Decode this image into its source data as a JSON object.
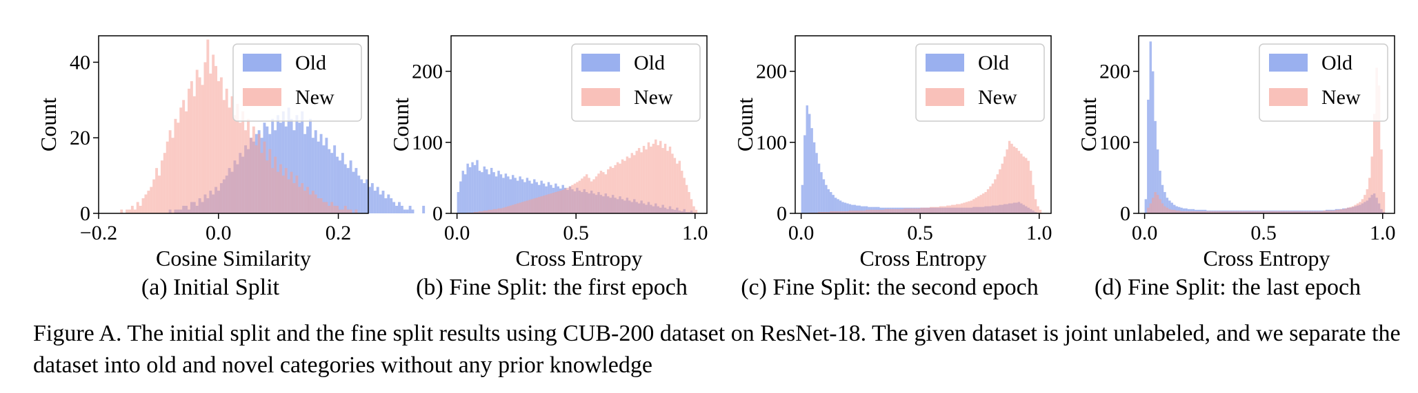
{
  "figure": {
    "caption": "Figure A. The initial split and the fine split results using CUB-200 dataset on ResNet-18.  The given dataset is joint unlabeled, and we separate the dataset into old and novel categories without any prior knowledge"
  },
  "colors": {
    "old": "#6f8ee8",
    "new": "#f6a095",
    "old_alpha": 0.6,
    "new_alpha": 0.55
  },
  "chart_data": [
    {
      "type": "bar",
      "subtitle": "(a) Initial Split",
      "xlabel": "Cosine Similarity",
      "ylabel": "Count",
      "xlim": [
        -0.2,
        0.25
      ],
      "ylim": [
        0,
        47
      ],
      "xticks": [
        -0.2,
        0.0,
        0.2
      ],
      "xtick_labels": [
        "−0.2",
        "0.0",
        "0.2"
      ],
      "yticks": [
        0,
        20,
        40
      ],
      "ytick_labels": [
        "0",
        "20",
        "40"
      ],
      "grid": false,
      "legend_position": "top-right",
      "bin_start": -0.2,
      "bin_width": 0.0045,
      "series": [
        {
          "name": "Old",
          "values": [
            0,
            0,
            0,
            0,
            0,
            0,
            0,
            0,
            0,
            0,
            0,
            0,
            0,
            0,
            0,
            0,
            0,
            0,
            0,
            0,
            0,
            0,
            0,
            0,
            0,
            0,
            1,
            0,
            1,
            1,
            1,
            2,
            2,
            1,
            3,
            3,
            2,
            4,
            3,
            5,
            4,
            6,
            5,
            7,
            6,
            8,
            9,
            10,
            12,
            11,
            14,
            13,
            16,
            15,
            18,
            17,
            20,
            19,
            21,
            22,
            20,
            24,
            23,
            21,
            25,
            22,
            26,
            24,
            27,
            23,
            28,
            25,
            22,
            26,
            24,
            27,
            21,
            23,
            25,
            20,
            22,
            19,
            21,
            18,
            20,
            17,
            16,
            18,
            15,
            14,
            16,
            13,
            12,
            14,
            11,
            12,
            10,
            9,
            8,
            9,
            7,
            8,
            6,
            7,
            5,
            6,
            4,
            5,
            4,
            3,
            2,
            3,
            2,
            1,
            1,
            2,
            1,
            0,
            0,
            0,
            2
          ]
        },
        {
          "name": "New",
          "values": [
            0,
            0,
            0,
            0,
            0,
            0,
            0,
            0,
            1,
            0,
            1,
            1,
            2,
            1,
            3,
            2,
            4,
            5,
            6,
            7,
            9,
            12,
            10,
            14,
            16,
            19,
            22,
            20,
            25,
            24,
            28,
            30,
            27,
            33,
            35,
            31,
            38,
            36,
            34,
            40,
            46,
            37,
            42,
            39,
            35,
            36,
            30,
            33,
            28,
            31,
            26,
            29,
            24,
            27,
            22,
            25,
            20,
            23,
            18,
            21,
            16,
            19,
            14,
            17,
            12,
            15,
            11,
            13,
            10,
            12,
            9,
            11,
            8,
            10,
            7,
            8,
            6,
            7,
            5,
            6,
            5,
            4,
            4,
            3,
            3,
            2,
            3,
            2,
            2,
            1,
            1,
            2,
            1,
            1,
            0,
            1,
            0,
            0,
            0,
            0,
            0,
            0,
            0,
            0,
            0,
            0,
            0,
            0,
            0,
            0,
            0,
            0,
            0,
            0,
            0,
            0,
            0,
            0,
            0,
            0,
            0
          ]
        }
      ]
    },
    {
      "type": "bar",
      "subtitle": "(b) Fine Split: the first epoch",
      "xlabel": "Cross Entropy",
      "ylabel": "Count",
      "xlim": [
        -0.025,
        1.05
      ],
      "ylim": [
        0,
        250
      ],
      "xticks": [
        0.0,
        0.5,
        1.0
      ],
      "xtick_labels": [
        "0.0",
        "0.5",
        "1.0"
      ],
      "yticks": [
        0,
        100,
        200
      ],
      "ytick_labels": [
        "0",
        "100",
        "200"
      ],
      "grid": false,
      "legend_position": "top-right",
      "bin_start": 0.0,
      "bin_width": 0.01,
      "series": [
        {
          "name": "Old",
          "values": [
            30,
            45,
            60,
            55,
            70,
            65,
            72,
            68,
            75,
            60,
            58,
            66,
            62,
            55,
            64,
            58,
            52,
            60,
            55,
            50,
            56,
            52,
            48,
            54,
            50,
            46,
            52,
            48,
            44,
            50,
            46,
            42,
            48,
            44,
            40,
            46,
            42,
            38,
            44,
            40,
            36,
            42,
            38,
            35,
            40,
            36,
            33,
            38,
            34,
            31,
            36,
            32,
            30,
            34,
            30,
            28,
            32,
            28,
            26,
            30,
            26,
            24,
            28,
            24,
            22,
            26,
            22,
            20,
            24,
            20,
            18,
            22,
            18,
            16,
            20,
            16,
            14,
            18,
            14,
            12,
            16,
            12,
            10,
            14,
            10,
            8,
            12,
            8,
            6,
            10,
            6,
            5,
            8,
            4,
            3,
            6,
            2,
            2,
            4,
            1,
            0
          ]
        },
        {
          "name": "New",
          "values": [
            0,
            0,
            0,
            0,
            1,
            1,
            1,
            2,
            2,
            3,
            3,
            4,
            4,
            5,
            5,
            6,
            6,
            7,
            7,
            8,
            9,
            10,
            11,
            12,
            13,
            14,
            15,
            16,
            17,
            18,
            19,
            20,
            21,
            22,
            23,
            24,
            25,
            26,
            27,
            28,
            29,
            30,
            31,
            32,
            33,
            35,
            36,
            38,
            40,
            42,
            44,
            46,
            49,
            52,
            55,
            50,
            45,
            48,
            52,
            56,
            60,
            58,
            55,
            62,
            66,
            64,
            68,
            72,
            70,
            76,
            74,
            80,
            78,
            85,
            82,
            88,
            92,
            86,
            95,
            90,
            100,
            94,
            98,
            104,
            96,
            102,
            92,
            98,
            88,
            94,
            84,
            78,
            70,
            74,
            60,
            50,
            40,
            30,
            20,
            10,
            5
          ]
        }
      ]
    },
    {
      "type": "bar",
      "subtitle": "(c) Fine Split: the second epoch",
      "xlabel": "Cross Entropy",
      "ylabel": "Count",
      "xlim": [
        -0.025,
        1.05
      ],
      "ylim": [
        0,
        250
      ],
      "xticks": [
        0.0,
        0.5,
        1.0
      ],
      "xtick_labels": [
        "0.0",
        "0.5",
        "1.0"
      ],
      "yticks": [
        0,
        100,
        200
      ],
      "ytick_labels": [
        "0",
        "100",
        "200"
      ],
      "grid": false,
      "legend_position": "top-right",
      "bin_start": 0.0,
      "bin_width": 0.01,
      "series": [
        {
          "name": "Old",
          "values": [
            40,
            110,
            152,
            140,
            120,
            100,
            85,
            70,
            58,
            48,
            40,
            34,
            30,
            26,
            22,
            20,
            18,
            16,
            15,
            14,
            13,
            12,
            12,
            11,
            11,
            10,
            10,
            10,
            9,
            9,
            9,
            9,
            9,
            8,
            8,
            8,
            8,
            8,
            8,
            8,
            8,
            8,
            8,
            8,
            8,
            8,
            8,
            8,
            8,
            8,
            8,
            8,
            8,
            8,
            8,
            8,
            8,
            8,
            8,
            8,
            8,
            8,
            8,
            8,
            8,
            8,
            8,
            8,
            8,
            8,
            8,
            8,
            9,
            9,
            9,
            9,
            9,
            10,
            10,
            10,
            11,
            11,
            11,
            12,
            12,
            13,
            13,
            14,
            14,
            15,
            15,
            16,
            14,
            12,
            10,
            8,
            6,
            4,
            2,
            1,
            0
          ]
        },
        {
          "name": "New",
          "values": [
            0,
            0,
            0,
            1,
            1,
            1,
            1,
            2,
            2,
            2,
            2,
            2,
            3,
            3,
            3,
            3,
            3,
            3,
            3,
            3,
            4,
            4,
            4,
            4,
            4,
            4,
            4,
            5,
            5,
            5,
            5,
            5,
            5,
            5,
            5,
            6,
            6,
            6,
            6,
            6,
            6,
            6,
            6,
            7,
            7,
            7,
            7,
            7,
            7,
            7,
            8,
            8,
            8,
            8,
            9,
            9,
            9,
            9,
            10,
            10,
            10,
            11,
            11,
            12,
            12,
            13,
            13,
            14,
            15,
            16,
            17,
            18,
            20,
            22,
            24,
            26,
            28,
            30,
            34,
            38,
            42,
            48,
            55,
            62,
            70,
            80,
            90,
            102,
            98,
            94,
            92,
            88,
            84,
            80,
            78,
            74,
            60,
            40,
            20,
            10,
            5
          ]
        }
      ]
    },
    {
      "type": "bar",
      "subtitle": "(d) Fine Split: the last epoch",
      "xlabel": "Cross Entropy",
      "ylabel": "Count",
      "xlim": [
        -0.025,
        1.05
      ],
      "ylim": [
        0,
        250
      ],
      "xticks": [
        0.0,
        0.5,
        1.0
      ],
      "xtick_labels": [
        "0.0",
        "0.5",
        "1.0"
      ],
      "yticks": [
        0,
        100,
        200
      ],
      "ytick_labels": [
        "0",
        "100",
        "200"
      ],
      "grid": false,
      "legend_position": "top-right",
      "bin_start": 0.0,
      "bin_width": 0.01,
      "series": [
        {
          "name": "Old",
          "values": [
            20,
            160,
            242,
            200,
            130,
            90,
            60,
            40,
            30,
            22,
            18,
            15,
            12,
            10,
            9,
            8,
            7,
            7,
            6,
            6,
            6,
            5,
            5,
            5,
            5,
            5,
            4,
            4,
            4,
            4,
            4,
            4,
            4,
            4,
            4,
            4,
            4,
            4,
            4,
            4,
            4,
            4,
            4,
            4,
            4,
            4,
            4,
            4,
            4,
            4,
            4,
            4,
            4,
            4,
            4,
            4,
            4,
            4,
            4,
            4,
            4,
            4,
            4,
            4,
            4,
            4,
            4,
            4,
            4,
            4,
            4,
            4,
            4,
            4,
            4,
            4,
            5,
            5,
            5,
            5,
            6,
            6,
            6,
            7,
            7,
            8,
            8,
            9,
            10,
            11,
            12,
            14,
            16,
            18,
            22,
            26,
            28,
            22,
            14,
            6,
            2
          ]
        },
        {
          "name": "New",
          "values": [
            0,
            8,
            14,
            22,
            30,
            26,
            20,
            14,
            10,
            8,
            6,
            5,
            5,
            4,
            4,
            3,
            3,
            3,
            3,
            3,
            3,
            3,
            3,
            3,
            3,
            3,
            3,
            3,
            3,
            3,
            3,
            3,
            3,
            3,
            3,
            3,
            3,
            3,
            3,
            3,
            3,
            3,
            3,
            3,
            3,
            3,
            3,
            3,
            3,
            3,
            3,
            3,
            3,
            3,
            3,
            3,
            3,
            3,
            3,
            3,
            3,
            3,
            3,
            3,
            3,
            3,
            3,
            3,
            3,
            3,
            3,
            3,
            3,
            3,
            3,
            4,
            4,
            4,
            4,
            4,
            5,
            5,
            6,
            6,
            7,
            8,
            9,
            10,
            12,
            14,
            16,
            20,
            26,
            34,
            50,
            80,
            140,
            205,
            180,
            90,
            30
          ]
        }
      ]
    }
  ]
}
